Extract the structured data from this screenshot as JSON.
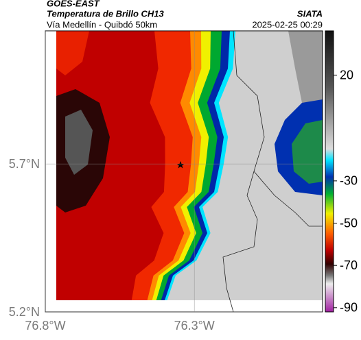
{
  "header": {
    "satellite": "GOES-EAST",
    "product": "Temperatura de Brillo CH13",
    "source": "SIATA",
    "route": "Vía Medellín - Quibdó 50km",
    "timestamp": "2025-02-25 00:29"
  },
  "map": {
    "lat_lim": [
      5.2,
      6.15
    ],
    "lon_lim": [
      -76.8,
      -75.87
    ],
    "lat_ticks": [
      {
        "value": 5.7,
        "label": "5.7°N"
      },
      {
        "value": 5.2,
        "label": "5.2°N"
      }
    ],
    "lon_ticks": [
      {
        "value": -76.8,
        "label": "76.8°W"
      },
      {
        "value": -76.3,
        "label": "76.3°W"
      }
    ]
  },
  "colorbar": {
    "lim": [
      -92,
      41
    ],
    "ticks": [
      20,
      -30,
      -50,
      -70,
      -90
    ]
  }
}
